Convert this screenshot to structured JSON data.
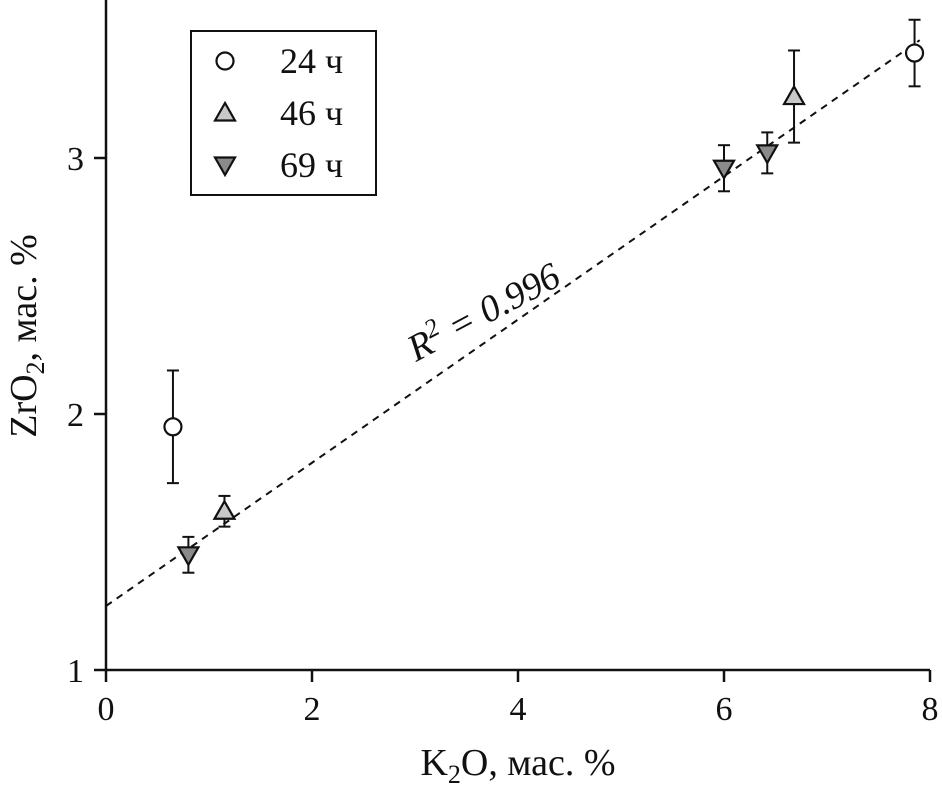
{
  "chart_data": {
    "type": "scatter",
    "title": "",
    "xlabel": {
      "base": "K",
      "sub": "2",
      "rest": "O, мас. %"
    },
    "ylabel": {
      "base": "ZrO",
      "sub": "2",
      "rest": ", мас. %"
    },
    "xlim": [
      0,
      8
    ],
    "ylim": [
      1,
      3.6
    ],
    "xticks": [
      0,
      2,
      4,
      6,
      8
    ],
    "yticks": [
      1,
      2,
      3
    ],
    "grid": false,
    "legend_position": "top-left",
    "series": [
      {
        "name": "24 ч",
        "marker": "circle",
        "color": "#ffffff",
        "points": [
          {
            "x": 0.65,
            "y": 1.95,
            "err": 0.22
          },
          {
            "x": 7.85,
            "y": 3.41,
            "err": 0.13
          }
        ]
      },
      {
        "name": "46 ч",
        "marker": "triangle-up",
        "color": "#c8c8c8",
        "points": [
          {
            "x": 1.15,
            "y": 1.62,
            "err": 0.06
          },
          {
            "x": 6.68,
            "y": 3.24,
            "err": 0.18
          }
        ]
      },
      {
        "name": "69 ч",
        "marker": "triangle-down",
        "color": "#8a8a8a",
        "points": [
          {
            "x": 0.8,
            "y": 1.45,
            "err": 0.07
          },
          {
            "x": 6.0,
            "y": 2.96,
            "err": 0.09
          },
          {
            "x": 6.42,
            "y": 3.02,
            "err": 0.08
          }
        ]
      }
    ],
    "fit": {
      "style": "dashed",
      "x": [
        0,
        7.9
      ],
      "y": [
        1.25,
        3.46
      ]
    },
    "annotation": {
      "label_base": "R",
      "label_sup": "2",
      "label_rest": " = 0.996"
    }
  }
}
